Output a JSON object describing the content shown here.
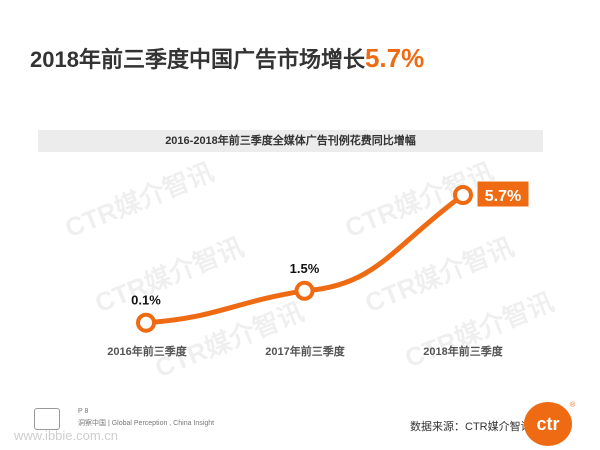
{
  "headline": {
    "text": "2018年前三季度中国广告市场增长",
    "highlight": "5.7%"
  },
  "chart_data": {
    "type": "line",
    "title": "2016-2018年前三季度全媒体广告刊例花费同比增幅",
    "categories": [
      "2016年前三季度",
      "2017年前三季度",
      "2018年前三季度"
    ],
    "series": [
      {
        "values": [
          0.1,
          1.5,
          5.7
        ],
        "labels": [
          "0.1%",
          "1.5%",
          "5.7%"
        ]
      }
    ],
    "ylim": [
      0,
      6
    ],
    "grid": false,
    "colors": {
      "line": "#ee6b13",
      "marker_fill": "#ffffff",
      "highlight_box": "#ee6b13"
    }
  },
  "watermark": "CTR媒介智讯",
  "footer": {
    "page": "P 8",
    "slogan": "洞察中国 | Global Perception , China Insight",
    "url": "www.ibbie.com.cn"
  },
  "source": "数据来源：CTR媒介智讯",
  "logo": {
    "text": "ctr",
    "mark": "®"
  }
}
